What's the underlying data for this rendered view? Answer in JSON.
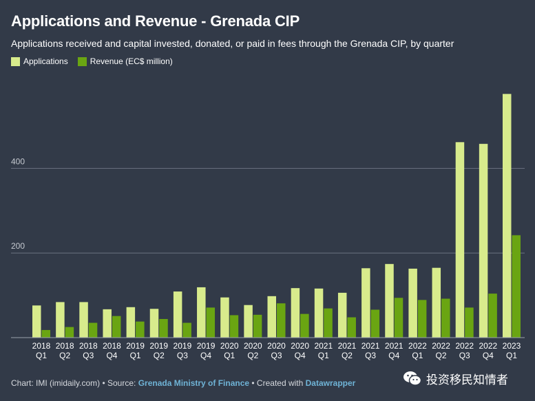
{
  "header": {
    "title": "Applications and Revenue - Grenada CIP",
    "subtitle": "Applications received and capital invested, donated, or paid in fees through the Grenada CIP, by quarter"
  },
  "legend": [
    {
      "label": "Applications",
      "color": "#d8eb8c"
    },
    {
      "label": "Revenue (EC$ million)",
      "color": "#6aa512"
    }
  ],
  "footer": {
    "prefix": "Chart: IMI (imidaily.com) • Source: ",
    "source": "Grenada Ministry of Finance",
    "middle": " • Created with ",
    "tool": "Datawrapper"
  },
  "watermark": {
    "text": "投资移民知情者",
    "icon": "wechat-icon"
  },
  "chart_data": {
    "type": "bar",
    "categories": [
      [
        "2018",
        "Q1"
      ],
      [
        "2018",
        "Q2"
      ],
      [
        "2018",
        "Q3"
      ],
      [
        "2018",
        "Q4"
      ],
      [
        "2019",
        "Q1"
      ],
      [
        "2019",
        "Q2"
      ],
      [
        "2019",
        "Q3"
      ],
      [
        "2019",
        "Q4"
      ],
      [
        "2020",
        "Q1"
      ],
      [
        "2020",
        "Q2"
      ],
      [
        "2020",
        "Q3"
      ],
      [
        "2020",
        "Q4"
      ],
      [
        "2021",
        "Q1"
      ],
      [
        "2021",
        "Q2"
      ],
      [
        "2021",
        "Q3"
      ],
      [
        "2021",
        "Q4"
      ],
      [
        "2022",
        "Q1"
      ],
      [
        "2022",
        "Q2"
      ],
      [
        "2022",
        "Q3"
      ],
      [
        "2022",
        "Q4"
      ],
      [
        "2023",
        "Q1"
      ]
    ],
    "series": [
      {
        "name": "Applications",
        "color": "#d8eb8c",
        "values": [
          76,
          84,
          84,
          67,
          72,
          68,
          109,
          119,
          95,
          77,
          98,
          117,
          116,
          106,
          164,
          174,
          163,
          165,
          462,
          458,
          576
        ]
      },
      {
        "name": "Revenue (EC$ million)",
        "color": "#6aa512",
        "values": [
          18,
          25,
          35,
          51,
          38,
          44,
          35,
          71,
          53,
          54,
          81,
          56,
          69,
          48,
          66,
          94,
          89,
          92,
          71,
          104,
          242
        ]
      }
    ],
    "yticks": [
      200,
      400
    ],
    "ylim": [
      0,
      600
    ],
    "grid": true,
    "legend_position": "top-left"
  }
}
